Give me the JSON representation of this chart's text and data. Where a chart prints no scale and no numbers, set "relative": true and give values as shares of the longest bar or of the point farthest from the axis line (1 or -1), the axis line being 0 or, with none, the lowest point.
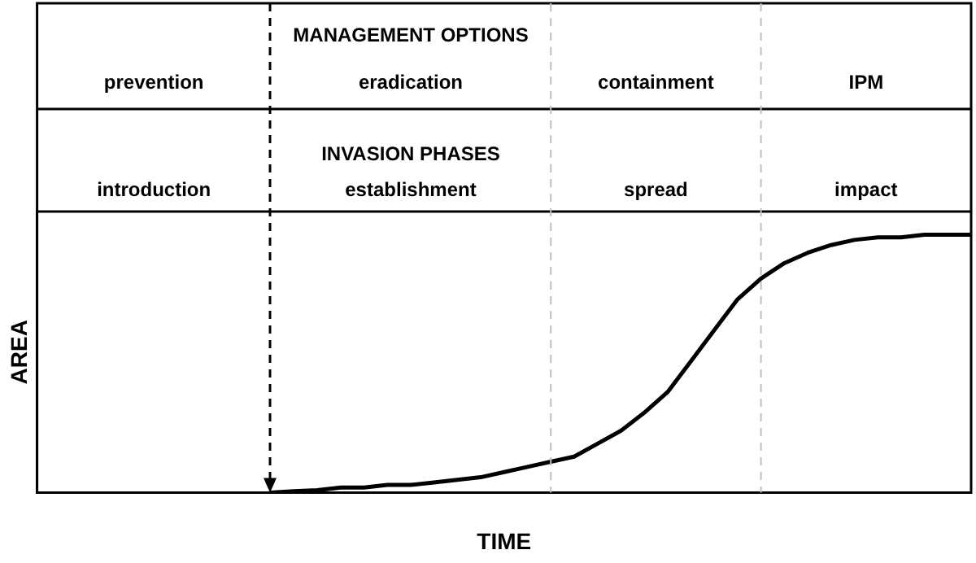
{
  "chart_data": {
    "type": "line",
    "relative": true,
    "xlabel": "TIME",
    "ylabel": "AREA",
    "categories": [
      null,
      null,
      null,
      null,
      null,
      null,
      null,
      null,
      null,
      null,
      null,
      null,
      null,
      null,
      null,
      null,
      null,
      null,
      null,
      null,
      null,
      null,
      null,
      null,
      null,
      null,
      null,
      null,
      null,
      null,
      null,
      null,
      null,
      null,
      null,
      null,
      null,
      null,
      null,
      null,
      null
    ],
    "series": [
      {
        "color": "#000000",
        "values": [
          null,
          null,
          null,
          null,
          null,
          null,
          null,
          null,
          null,
          null,
          0,
          0.006,
          0.01,
          0.02,
          0.02,
          0.03,
          0.03,
          0.04,
          0.05,
          0.06,
          0.08,
          0.1,
          0.12,
          0.14,
          0.19,
          0.24,
          0.31,
          0.39,
          0.51,
          0.63,
          0.75,
          0.83,
          0.89,
          0.93,
          0.96,
          0.98,
          0.99,
          0.99,
          1,
          1,
          1
        ]
      }
    ],
    "annotations": [
      "MANAGEMENT OPTIONS",
      "prevention",
      "eradication",
      "containment",
      "IPM",
      "INVASION PHASES",
      "introduction",
      "establishment",
      "spread",
      "impact"
    ],
    "grid": false,
    "legend": false,
    "marker": "none",
    "line_style": "solid"
  }
}
